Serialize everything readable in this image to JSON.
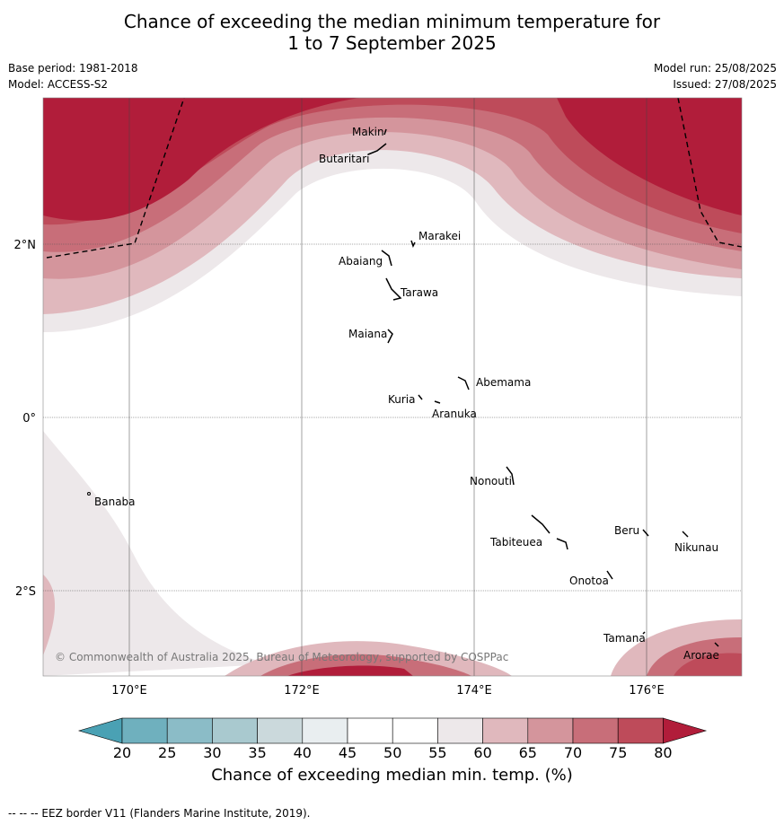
{
  "title_line1": "Chance of exceeding the median minimum temperature for",
  "title_line2": "1 to 7 September 2025",
  "base_period": "Base period: 1981-2018",
  "model": "Model: ACCESS-S2",
  "model_run": "Model run: 25/08/2025",
  "issued": "Issued: 27/08/2025",
  "lat_labels": [
    "2°N",
    "0°",
    "2°S"
  ],
  "lon_labels": [
    "170°E",
    "172°E",
    "174°E",
    "176°E"
  ],
  "islands": [
    "Makin",
    "Butaritari",
    "Marakei",
    "Abaiang",
    "Tarawa",
    "Maiana",
    "Abemama",
    "Kuria",
    "Aranuka",
    "Banaba",
    "Nonouti",
    "Beru",
    "Tabiteuea",
    "Nikunau",
    "Onotoa",
    "Tamana",
    "Arorae"
  ],
  "copyright": "© Commonwealth of Australia 2025, Bureau of Meteorology, supported by COSPPac",
  "colorbar": {
    "ticks": [
      "20",
      "25",
      "30",
      "35",
      "40",
      "45",
      "50",
      "55",
      "60",
      "65",
      "70",
      "75",
      "80"
    ],
    "colors": {
      "below_20": "#4aa1b4",
      "c20_25": "#6fb0be",
      "c25_30": "#8bbcc7",
      "c30_35": "#a9c9cf",
      "c35_40": "#cbd9dc",
      "c40_45": "#e9eef0",
      "c45_50": "#ffffff",
      "c50_55": "#ffffff",
      "c55_60": "#ede8ea",
      "c60_65": "#e0b8bd",
      "c65_70": "#d4959c",
      "c70_75": "#c86e79",
      "c75_80": "#be4b5a",
      "above_80": "#b11d3a"
    }
  },
  "colorbar_title": "Chance of exceeding median min. temp. (%)",
  "legend_footer": "--  --  -- EEZ border V11 (Flanders Marine Institute, 2019)."
}
